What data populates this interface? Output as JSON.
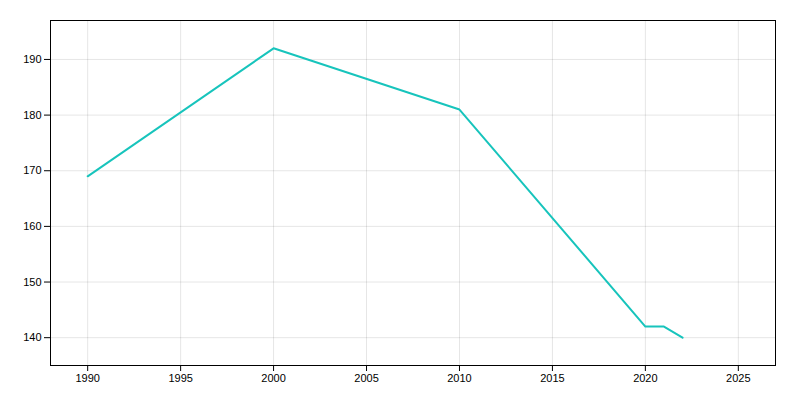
{
  "chart_data": {
    "type": "line",
    "x": [
      1990,
      2000,
      2010,
      2020,
      2021,
      2022
    ],
    "values": [
      169,
      192,
      181,
      142,
      142,
      140
    ],
    "color": "#17c4bc",
    "xlim": [
      1988,
      2027
    ],
    "ylim": [
      135,
      197
    ],
    "xticks": [
      1990,
      1995,
      2000,
      2005,
      2010,
      2015,
      2020,
      2025
    ],
    "yticks": [
      140,
      150,
      160,
      170,
      180,
      190
    ],
    "grid": true
  }
}
